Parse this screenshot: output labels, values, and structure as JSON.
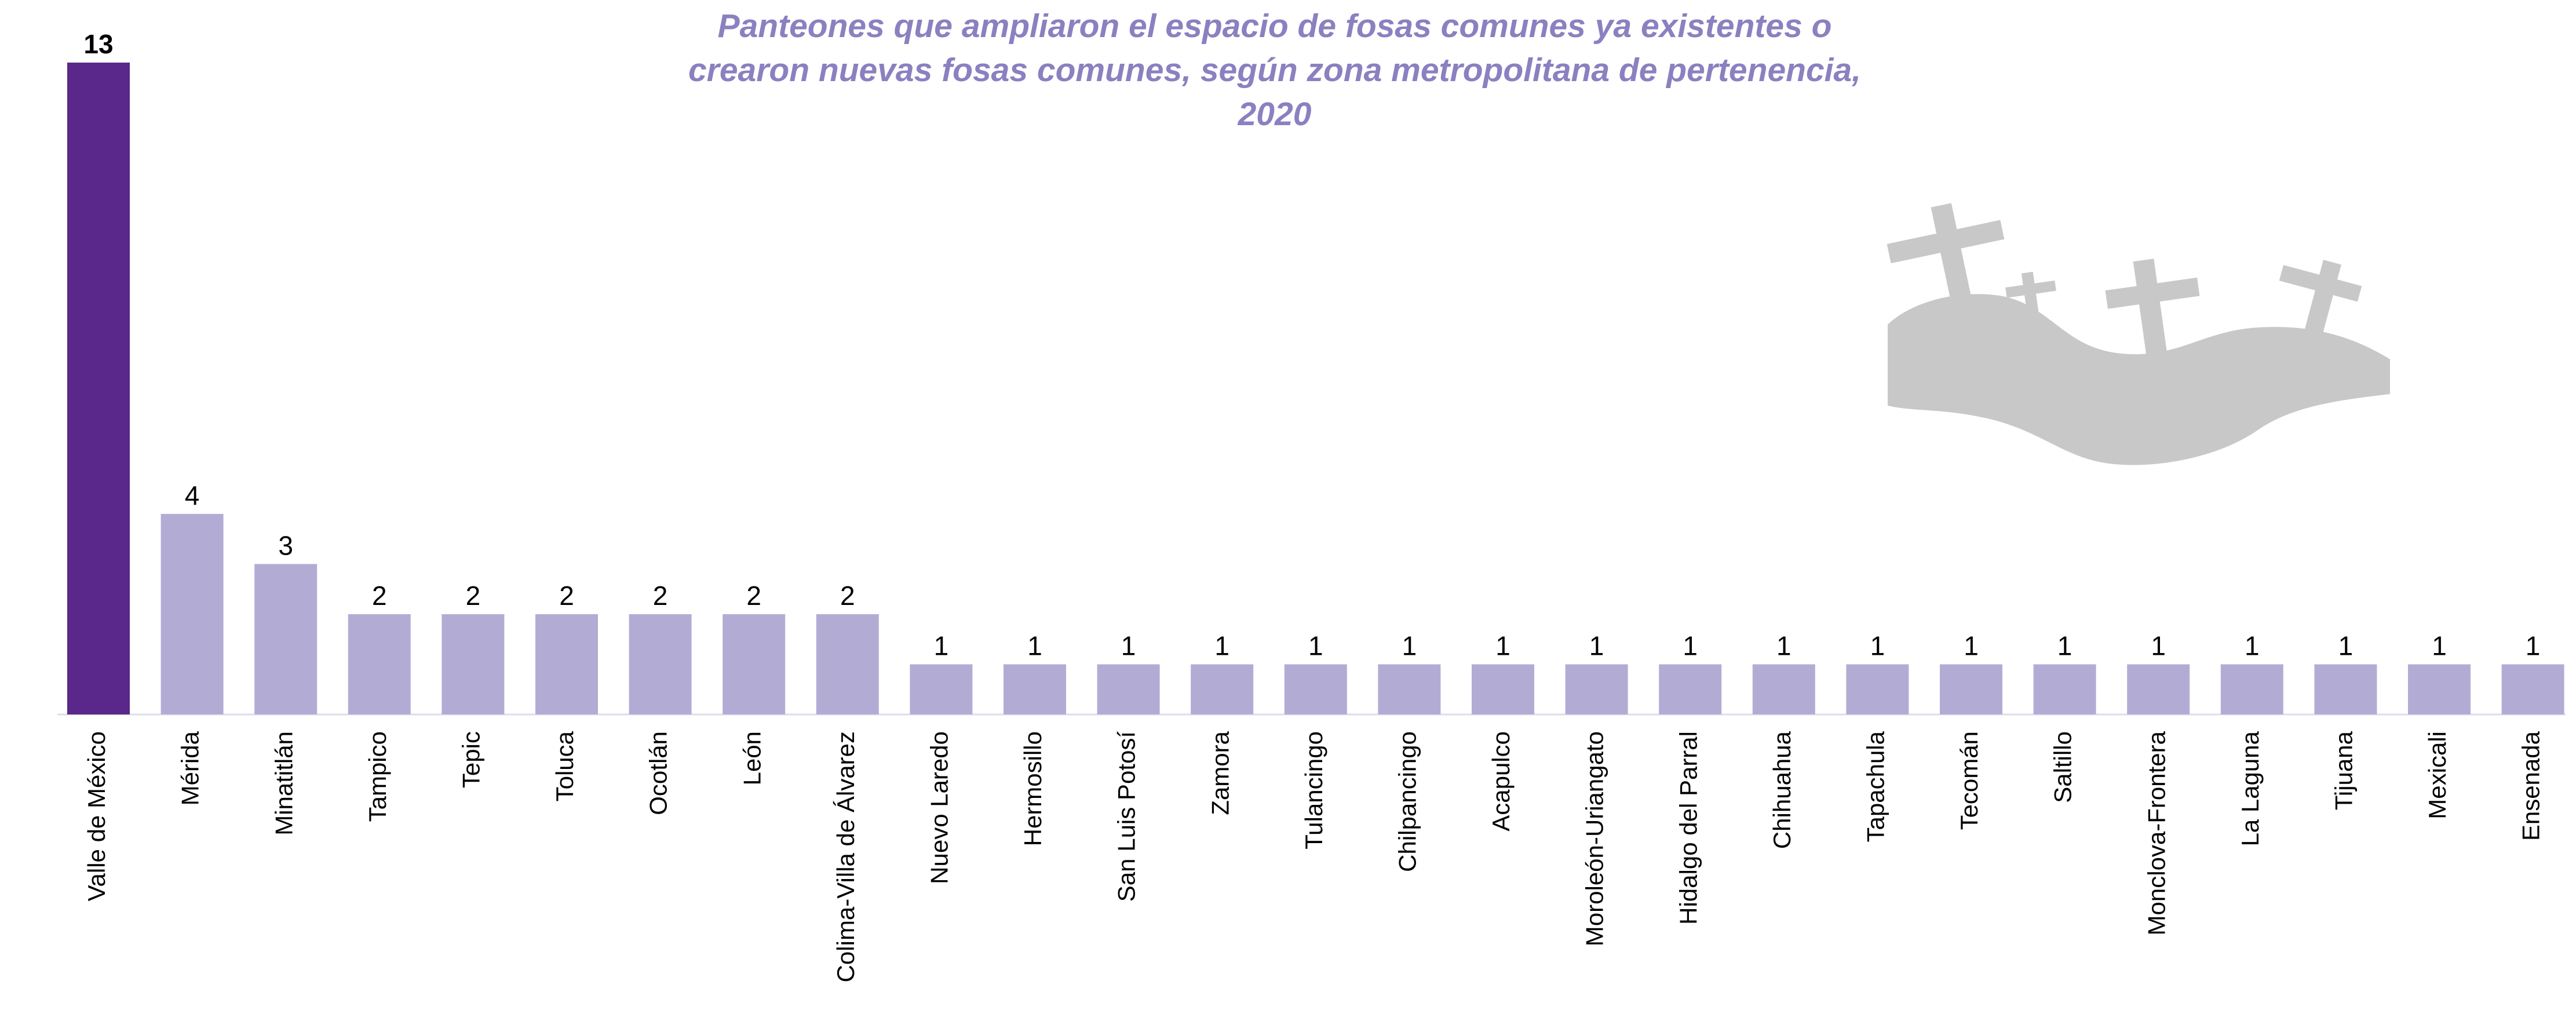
{
  "chart_data": {
    "type": "bar",
    "title": [
      "Panteones que ampliaron el espacio de  fosas comunes ya existentes o",
      "crearon nuevas fosas comunes, según zona metropolitana de pertenencia,",
      "2020"
    ],
    "categories": [
      "Valle de México",
      "Mérida",
      "Minatitlán",
      "Tampico",
      "Tepic",
      "Toluca",
      "Ocotlán",
      "León",
      "Colima-Villa de Álvarez",
      "Nuevo Laredo",
      "Hermosillo",
      "San Luis Potosí",
      "Zamora",
      "Tulancingo",
      "Chilpancingo",
      "Acapulco",
      "Moroleón-Uriangato",
      "Hidalgo del Parral",
      "Chihuahua",
      "Tapachula",
      "Tecomán",
      "Saltillo",
      "Monclova-Frontera",
      "La Laguna",
      "Tijuana",
      "Mexicali",
      "Ensenada"
    ],
    "values": [
      13,
      4,
      3,
      2,
      2,
      2,
      2,
      2,
      2,
      1,
      1,
      1,
      1,
      1,
      1,
      1,
      1,
      1,
      1,
      1,
      1,
      1,
      1,
      1,
      1,
      1,
      1
    ],
    "colors": [
      "#59288a",
      "#b2acd5",
      "#b2acd5",
      "#b2acd5",
      "#b2acd5",
      "#b2acd5",
      "#b2acd5",
      "#b2acd5",
      "#b2acd5",
      "#b2acd5",
      "#b2acd5",
      "#b2acd5",
      "#b2acd5",
      "#b2acd5",
      "#b2acd5",
      "#b2acd5",
      "#b2acd5",
      "#b2acd5",
      "#b2acd5",
      "#b2acd5",
      "#b2acd5",
      "#b2acd5",
      "#b2acd5",
      "#b2acd5",
      "#b2acd5",
      "#b2acd5",
      "#b2acd5"
    ]
  }
}
